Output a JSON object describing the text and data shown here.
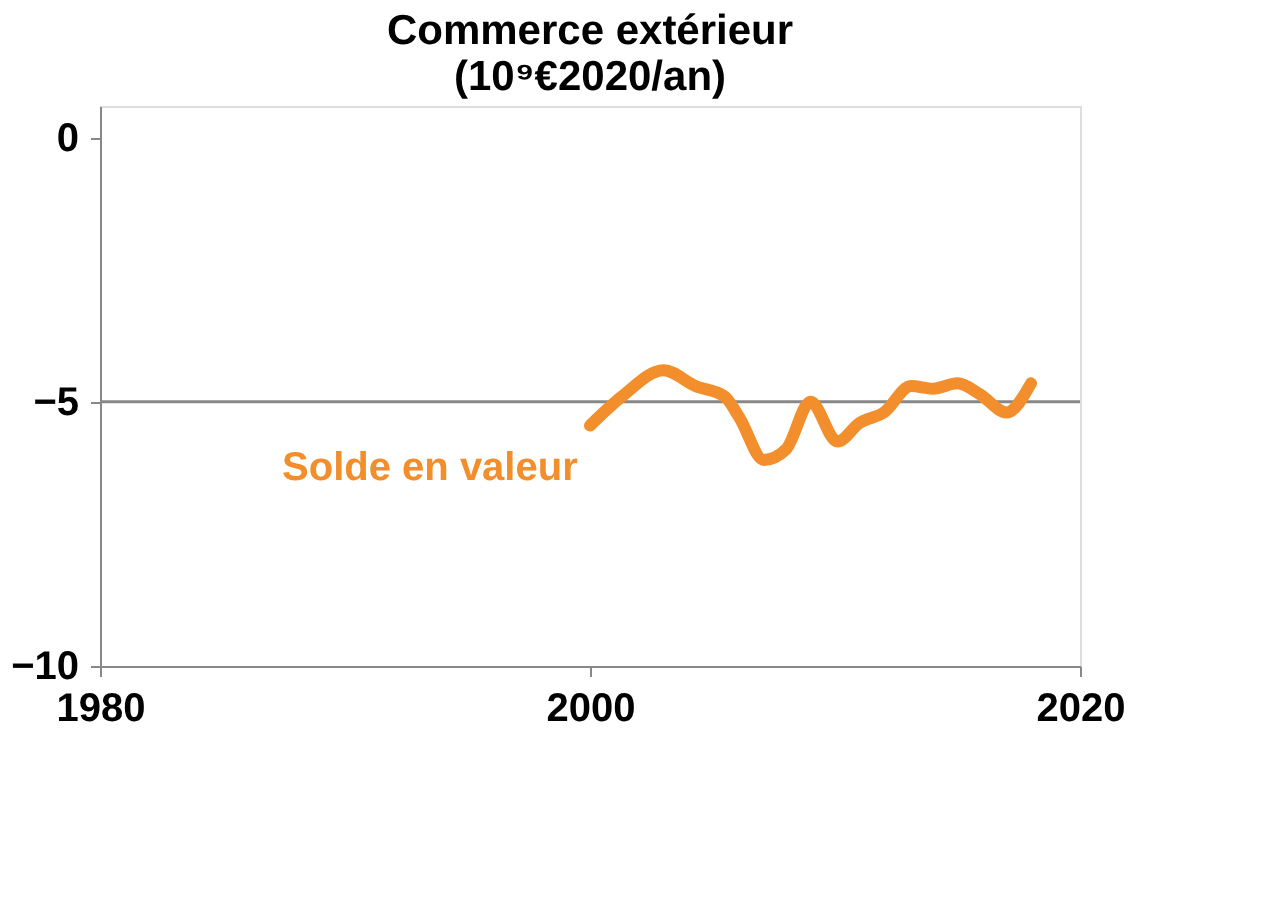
{
  "chart_data": {
    "type": "line",
    "title": [
      "Commerce extérieur",
      "(10⁹€2020/an)"
    ],
    "x": [
      2000,
      2001.3,
      2003,
      2004.3,
      2005.5,
      2006.1,
      2007.1,
      2008,
      2009,
      2010.1,
      2011,
      2012,
      2013.1,
      2014,
      2015,
      2015.9,
      2017,
      2018
    ],
    "series": [
      {
        "name": "Solde en valeur",
        "color": "#f28e2b",
        "values": [
          -5.45,
          -4.9,
          -4.4,
          -4.7,
          -4.9,
          -5.3,
          -6.1,
          -5.9,
          -5.0,
          -5.75,
          -5.4,
          -5.2,
          -4.7,
          -4.75,
          -4.65,
          -4.85,
          -5.2,
          -4.65
        ]
      }
    ],
    "xlim": [
      1980,
      2020
    ],
    "xticks": [
      1980,
      2000,
      2020
    ],
    "ylim": [
      -10,
      0.6
    ],
    "yticks": [
      -10,
      -5,
      0
    ],
    "ref_lines": [
      {
        "axis": "y",
        "value": -5,
        "color": "#888888"
      }
    ],
    "grid": false,
    "legend": false
  }
}
